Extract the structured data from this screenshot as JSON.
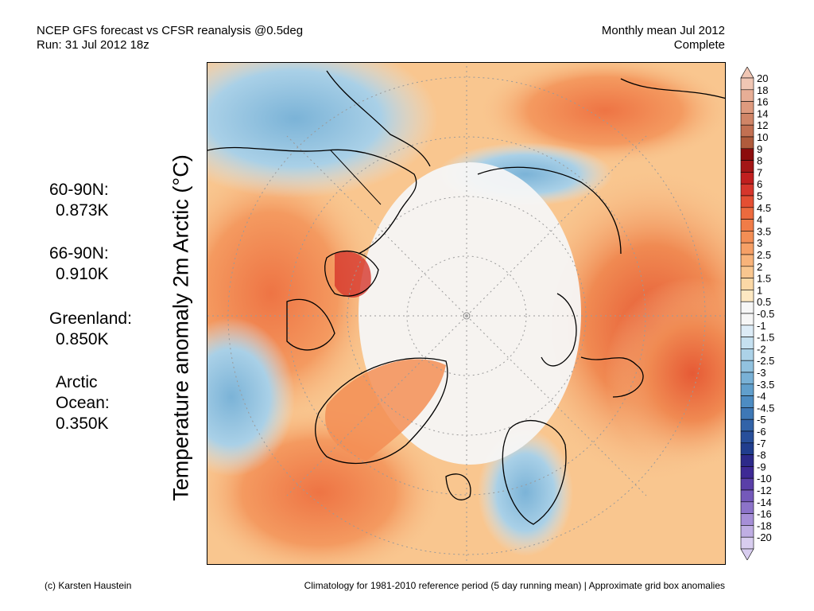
{
  "header": {
    "line1": "NCEP GFS forecast vs CFSR reanalysis @0.5deg",
    "line2": "Run: 31 Jul 2012 18z",
    "right1": "Monthly mean Jul 2012",
    "right2": "Complete"
  },
  "vertical_label": "Temperature anomaly 2m Arctic (°C)",
  "stats": [
    {
      "label": "60-90N:",
      "value": "0.873K"
    },
    {
      "label": "66-90N:",
      "value": "0.910K"
    },
    {
      "label": "Greenland:",
      "value": "0.850K"
    },
    {
      "label": "Arctic",
      "label2": "Ocean:",
      "value": "0.350K"
    }
  ],
  "footer": {
    "left": "(c) Karsten Haustein",
    "right": "Climatology for 1981-2010 reference period (5 day running mean) | Approximate grid box anomalies"
  },
  "colorbar": {
    "levels": [
      {
        "label": "20",
        "color": "#f0c6b4"
      },
      {
        "label": "18",
        "color": "#e7ae96"
      },
      {
        "label": "16",
        "color": "#de9a7e"
      },
      {
        "label": "14",
        "color": "#d08567"
      },
      {
        "label": "12",
        "color": "#c27052"
      },
      {
        "label": "10",
        "color": "#b05b3c"
      },
      {
        "label": "9",
        "color": "#8c0d0d"
      },
      {
        "label": "8",
        "color": "#a31616"
      },
      {
        "label": "7",
        "color": "#c11f1f"
      },
      {
        "label": "6",
        "color": "#d6362c"
      },
      {
        "label": "5",
        "color": "#e44f33"
      },
      {
        "label": "4.5",
        "color": "#ec6a3e"
      },
      {
        "label": "4",
        "color": "#f07c48"
      },
      {
        "label": "3.5",
        "color": "#f38e55"
      },
      {
        "label": "3",
        "color": "#f6a066"
      },
      {
        "label": "2.5",
        "color": "#f8b37a"
      },
      {
        "label": "2",
        "color": "#f9c68f"
      },
      {
        "label": "1.5",
        "color": "#fbd8a6"
      },
      {
        "label": "1",
        "color": "#fde8c2"
      },
      {
        "label": "0.5",
        "color": "#f6f6f6"
      },
      {
        "label": "-0.5",
        "color": "#f6f6f6"
      },
      {
        "label": "-1",
        "color": "#dcebf6"
      },
      {
        "label": "-1.5",
        "color": "#c5e0f0"
      },
      {
        "label": "-2",
        "color": "#acd2e8"
      },
      {
        "label": "-2.5",
        "color": "#92c2df"
      },
      {
        "label": "-3",
        "color": "#79b1d6"
      },
      {
        "label": "-3.5",
        "color": "#619fcc"
      },
      {
        "label": "-4",
        "color": "#4d8cc2"
      },
      {
        "label": "-4.5",
        "color": "#3e78b6"
      },
      {
        "label": "-5",
        "color": "#3263a8"
      },
      {
        "label": "-6",
        "color": "#284f9a"
      },
      {
        "label": "-7",
        "color": "#213e8e"
      },
      {
        "label": "-8",
        "color": "#2d2a8a"
      },
      {
        "label": "-9",
        "color": "#3e2a95"
      },
      {
        "label": "-10",
        "color": "#5a3fa8"
      },
      {
        "label": "-12",
        "color": "#7459ba"
      },
      {
        "label": "-14",
        "color": "#8c73c9"
      },
      {
        "label": "-16",
        "color": "#a68fd7"
      },
      {
        "label": "-18",
        "color": "#bfaee3"
      },
      {
        "label": "-20",
        "color": "#d8cdef"
      }
    ]
  }
}
